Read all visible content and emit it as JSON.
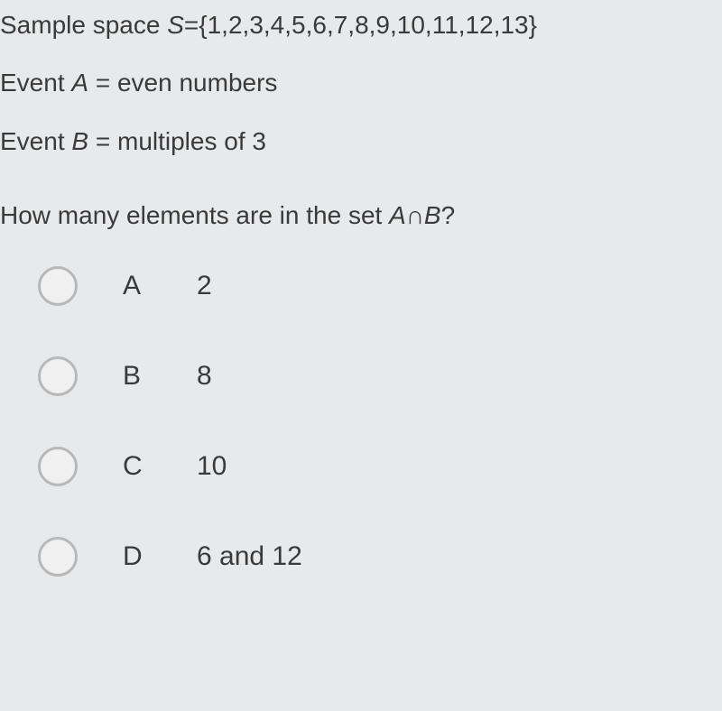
{
  "problem": {
    "line1_prefix": "Sample space ",
    "line1_var": "S",
    "line1_rest": "={1,2,3,4,5,6,7,8,9,10,11,12,13}",
    "line2_prefix": "Event ",
    "line2_var": "A",
    "line2_rest": " = even numbers",
    "line3_prefix": "Event ",
    "line3_var": "B",
    "line3_rest": " = multiples of 3"
  },
  "question": {
    "prefix": "How many elements are in the set ",
    "set_expr": "A∩B",
    "suffix": "?"
  },
  "options": [
    {
      "letter": "A",
      "value": "2"
    },
    {
      "letter": "B",
      "value": "8"
    },
    {
      "letter": "C",
      "value": "10"
    },
    {
      "letter": "D",
      "value": "6 and 12"
    }
  ],
  "style": {
    "background_color": "#e8e9ea",
    "text_color": "#3a3a3a",
    "radio_border_color": "#b8b8b8",
    "radio_fill_color": "#f0f0f0",
    "body_fontsize": 28,
    "option_fontsize": 30,
    "radio_diameter": 44
  }
}
